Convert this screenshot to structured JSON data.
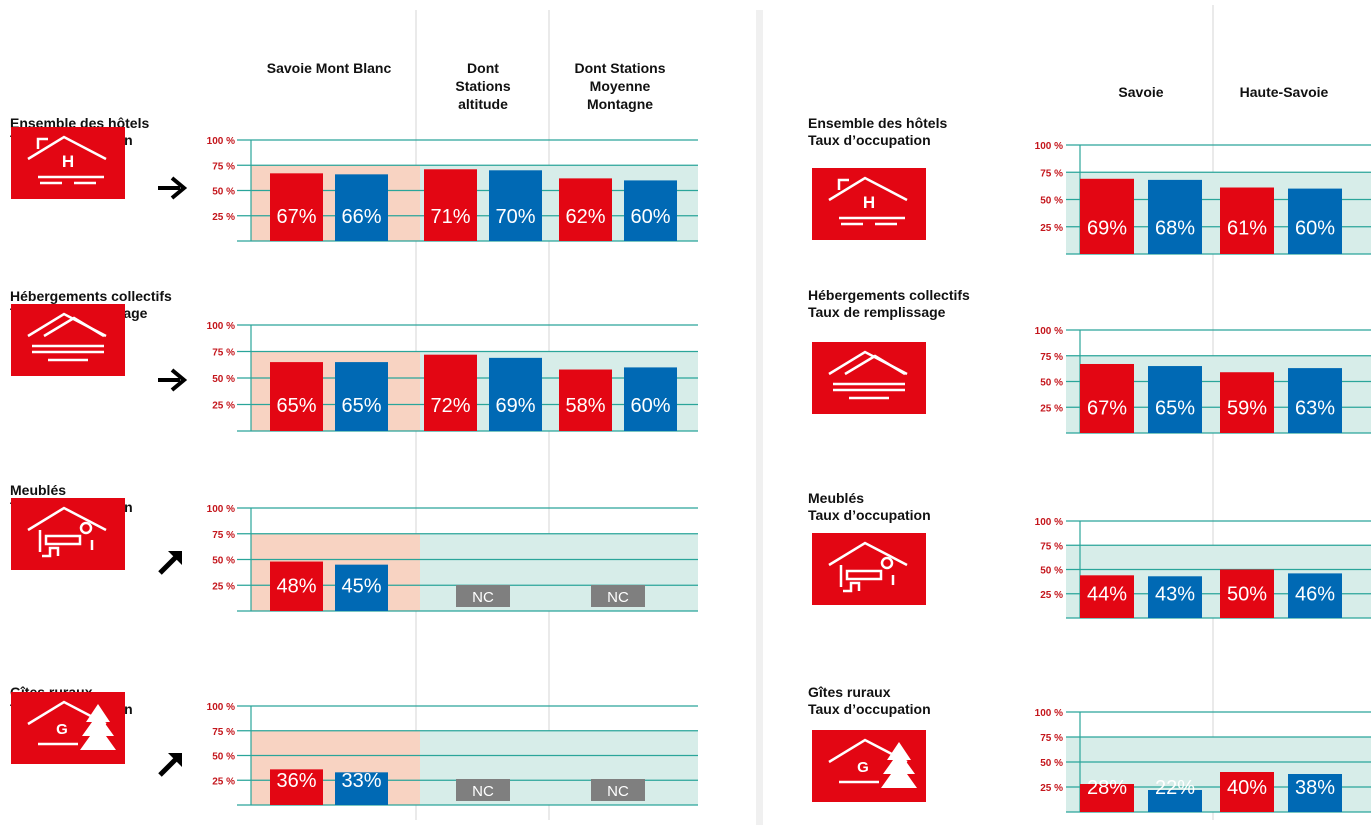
{
  "colors": {
    "red": "#e30613",
    "blue": "#0069b4",
    "grid": "#2aa59a",
    "band_salmon": "#f8d3c2",
    "band_teal": "#d7ede9",
    "nc_gray": "#7f7f7f",
    "divider": "#d4d4d4"
  },
  "icons": [
    "hotel-icon",
    "collective-lodging-icon",
    "furnished-rental-icon",
    "rural-gite-icon"
  ],
  "trend_icons": [
    "arrow-right-icon",
    "arrow-right-icon",
    "arrow-up-right-icon",
    "arrow-up-right-icon"
  ],
  "chart_data": [
    {
      "type": "bar",
      "title": "",
      "column_headers": [
        "Savoie Mont Blanc",
        "Dont Stations altitude",
        "Dont Stations Moyenne Montagne"
      ],
      "series": [
        {
          "values_color": "#e30613"
        },
        {
          "values_color": "#0069b4"
        }
      ],
      "ticks": [
        "100 %",
        "75 %",
        "50 %",
        "25 %"
      ],
      "ylim": [
        0,
        100
      ],
      "grid": true,
      "panels": [
        {
          "title": "Ensemble des hôtels",
          "subtitle": "Taux d’occupation",
          "trend": "stable",
          "groups": [
            {
              "values": [
                67,
                66
              ],
              "labels": [
                "67%",
                "66%"
              ]
            },
            {
              "values": [
                71,
                70
              ],
              "labels": [
                "71%",
                "70%"
              ]
            },
            {
              "values": [
                62,
                60
              ],
              "labels": [
                "62%",
                "60%"
              ]
            }
          ]
        },
        {
          "title": "Hébergements collectifs",
          "subtitle": "Taux de remplissage",
          "trend": "stable",
          "groups": [
            {
              "values": [
                65,
                65
              ],
              "labels": [
                "65%",
                "65%"
              ]
            },
            {
              "values": [
                72,
                69
              ],
              "labels": [
                "72%",
                "69%"
              ]
            },
            {
              "values": [
                58,
                60
              ],
              "labels": [
                "58%",
                "60%"
              ]
            }
          ]
        },
        {
          "title": "Meublés",
          "subtitle": "Taux d’occupation",
          "trend": "up",
          "groups": [
            {
              "values": [
                48,
                45
              ],
              "labels": [
                "48%",
                "45%"
              ]
            },
            {
              "nc": "NC"
            },
            {
              "nc": "NC"
            }
          ]
        },
        {
          "title": "Gîtes ruraux",
          "subtitle": "Taux d’occupation",
          "trend": "up",
          "groups": [
            {
              "values": [
                36,
                33
              ],
              "labels": [
                "36%",
                "33%"
              ]
            },
            {
              "nc": "NC"
            },
            {
              "nc": "NC"
            }
          ]
        }
      ]
    },
    {
      "type": "bar",
      "title": "",
      "column_headers": [
        "Savoie",
        "Haute-Savoie"
      ],
      "ticks": [
        "100 %",
        "75 %",
        "50 %",
        "25 %"
      ],
      "ylim": [
        0,
        100
      ],
      "grid": true,
      "panels": [
        {
          "title": "Ensemble des hôtels",
          "subtitle": "Taux d’occupation",
          "groups": [
            {
              "values": [
                69,
                68
              ],
              "labels": [
                "69%",
                "68%"
              ]
            },
            {
              "values": [
                61,
                60
              ],
              "labels": [
                "61%",
                "60%"
              ]
            }
          ]
        },
        {
          "title": "Hébergements collectifs",
          "subtitle": "Taux de remplissage",
          "groups": [
            {
              "values": [
                67,
                65
              ],
              "labels": [
                "67%",
                "65%"
              ]
            },
            {
              "values": [
                59,
                63
              ],
              "labels": [
                "59%",
                "63%"
              ]
            }
          ]
        },
        {
          "title": "Meublés",
          "subtitle": "Taux d’occupation",
          "groups": [
            {
              "values": [
                44,
                43
              ],
              "labels": [
                "44%",
                "43%"
              ]
            },
            {
              "values": [
                50,
                46
              ],
              "labels": [
                "50%",
                "46%"
              ]
            }
          ]
        },
        {
          "title": "Gîtes ruraux",
          "subtitle": "Taux d’occupation",
          "groups": [
            {
              "values": [
                28,
                22
              ],
              "labels": [
                "28%",
                "22%"
              ]
            },
            {
              "values": [
                40,
                38
              ],
              "labels": [
                "40%",
                "38%"
              ]
            }
          ]
        }
      ]
    }
  ]
}
